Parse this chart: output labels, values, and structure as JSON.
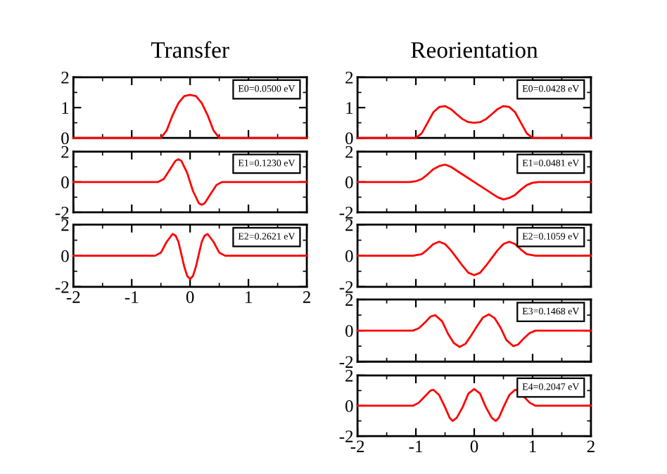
{
  "chart_data": [
    {
      "type": "line",
      "title": "Transfer",
      "x": [
        -2,
        -1,
        -0.5,
        -0.4,
        -0.3,
        -0.2,
        -0.1,
        0,
        0.1,
        0.2,
        0.3,
        0.4,
        0.5,
        1,
        2
      ],
      "series": [
        {
          "color": "#ff0000",
          "values": [
            0,
            0,
            0,
            0.25,
            0.75,
            1.15,
            1.38,
            1.42,
            1.38,
            1.15,
            0.75,
            0.25,
            0,
            0,
            0
          ]
        }
      ],
      "xlim": [
        -2,
        2
      ],
      "ylim": [
        0,
        2
      ],
      "xticks": [
        -2,
        -1,
        0,
        1,
        2
      ],
      "yticks": [
        0,
        1,
        2
      ],
      "tick_labels": "y",
      "annotations": [
        "E0=0.0500 eV"
      ]
    },
    {
      "type": "line",
      "x": [
        -2,
        -1,
        -0.55,
        -0.45,
        -0.35,
        -0.25,
        -0.2,
        -0.15,
        -0.05,
        0,
        0.05,
        0.15,
        0.2,
        0.25,
        0.35,
        0.45,
        0.55,
        1,
        2
      ],
      "series": [
        {
          "color": "#ff0000",
          "values": [
            0,
            0,
            0,
            0.2,
            0.8,
            1.4,
            1.5,
            1.4,
            0.6,
            0,
            -0.6,
            -1.4,
            -1.5,
            -1.4,
            -0.8,
            -0.2,
            0,
            0,
            0
          ]
        }
      ],
      "xlim": [
        -2,
        2
      ],
      "ylim": [
        -2,
        2
      ],
      "xticks": [
        -2,
        -1,
        0,
        1,
        2
      ],
      "yticks": [
        -2,
        0,
        2
      ],
      "tick_labels": "y",
      "annotations": [
        "E1=0.1230 eV"
      ]
    },
    {
      "type": "line",
      "x": [
        -2,
        -1,
        -0.6,
        -0.5,
        -0.4,
        -0.3,
        -0.25,
        -0.2,
        -0.15,
        -0.1,
        -0.05,
        0,
        0.05,
        0.1,
        0.15,
        0.2,
        0.25,
        0.3,
        0.4,
        0.5,
        0.6,
        1,
        2
      ],
      "series": [
        {
          "color": "#ff0000",
          "values": [
            0,
            0,
            0,
            0.2,
            0.9,
            1.4,
            1.3,
            0.9,
            0.1,
            -0.7,
            -1.3,
            -1.5,
            -1.3,
            -0.7,
            0.1,
            0.9,
            1.3,
            1.4,
            0.9,
            0.2,
            0,
            0,
            0
          ]
        }
      ],
      "xlim": [
        -2,
        2
      ],
      "ylim": [
        -2,
        2
      ],
      "xticks": [
        -2,
        -1,
        0,
        1,
        2
      ],
      "yticks": [
        -2,
        0,
        2
      ],
      "annotations": [
        "E2=0.2621 eV"
      ]
    },
    {
      "type": "line",
      "title": "Reorientation",
      "x": [
        -2,
        -1.5,
        -1,
        -0.9,
        -0.8,
        -0.7,
        -0.6,
        -0.5,
        -0.4,
        -0.3,
        -0.2,
        -0.1,
        0,
        0.1,
        0.2,
        0.3,
        0.4,
        0.5,
        0.6,
        0.7,
        0.8,
        0.9,
        1,
        1.5,
        2
      ],
      "series": [
        {
          "color": "#ff0000",
          "values": [
            0,
            0,
            0,
            0.15,
            0.5,
            0.85,
            1.02,
            1.05,
            0.95,
            0.78,
            0.62,
            0.52,
            0.5,
            0.52,
            0.62,
            0.78,
            0.95,
            1.05,
            1.02,
            0.85,
            0.5,
            0.15,
            0,
            0,
            0
          ]
        }
      ],
      "xlim": [
        -2,
        2
      ],
      "ylim": [
        0,
        2
      ],
      "xticks": [
        -2,
        -1,
        0,
        1,
        2
      ],
      "yticks": [
        0,
        1,
        2
      ],
      "tick_labels": "y",
      "annotations": [
        "E0=0.0428 eV"
      ]
    },
    {
      "type": "line",
      "x": [
        -2,
        -1.5,
        -1.1,
        -1,
        -0.9,
        -0.8,
        -0.7,
        -0.6,
        -0.5,
        -0.4,
        -0.2,
        0,
        0.2,
        0.4,
        0.5,
        0.6,
        0.7,
        0.8,
        0.9,
        1,
        1.1,
        1.5,
        2
      ],
      "series": [
        {
          "color": "#ff0000",
          "values": [
            0,
            0,
            0,
            0.05,
            0.2,
            0.5,
            0.85,
            1.05,
            1.15,
            1.0,
            0.5,
            0,
            -0.5,
            -1.0,
            -1.15,
            -1.05,
            -0.85,
            -0.5,
            -0.2,
            -0.05,
            0,
            0,
            0
          ]
        }
      ],
      "xlim": [
        -2,
        2
      ],
      "ylim": [
        -2,
        2
      ],
      "xticks": [
        -2,
        -1,
        0,
        1,
        2
      ],
      "yticks": [
        -2,
        0,
        2
      ],
      "tick_labels": "y",
      "annotations": [
        "E1=0.0481 eV"
      ]
    },
    {
      "type": "line",
      "x": [
        -2,
        -1.5,
        -1.05,
        -0.9,
        -0.8,
        -0.7,
        -0.6,
        -0.5,
        -0.4,
        -0.3,
        -0.2,
        -0.1,
        0,
        0.1,
        0.2,
        0.3,
        0.4,
        0.5,
        0.6,
        0.7,
        0.8,
        0.9,
        1.05,
        1.5,
        2
      ],
      "series": [
        {
          "color": "#ff0000",
          "values": [
            0,
            0,
            0,
            0.1,
            0.4,
            0.75,
            0.9,
            0.75,
            0.35,
            -0.15,
            -0.65,
            -1.1,
            -1.25,
            -1.1,
            -0.65,
            -0.15,
            0.35,
            0.75,
            0.9,
            0.75,
            0.4,
            0.1,
            0,
            0,
            0
          ]
        }
      ],
      "xlim": [
        -2,
        2
      ],
      "ylim": [
        -2,
        2
      ],
      "xticks": [
        -2,
        -1,
        0,
        1,
        2
      ],
      "yticks": [
        -2,
        0,
        2
      ],
      "tick_labels": "y",
      "annotations": [
        "E2=0.1059 eV"
      ]
    },
    {
      "type": "line",
      "x": [
        -2,
        -1.5,
        -1.05,
        -0.95,
        -0.85,
        -0.75,
        -0.67,
        -0.55,
        -0.45,
        -0.35,
        -0.25,
        -0.15,
        -0.05,
        0,
        0.05,
        0.15,
        0.25,
        0.35,
        0.45,
        0.55,
        0.67,
        0.75,
        0.85,
        0.95,
        1.05,
        1.5,
        2
      ],
      "series": [
        {
          "color": "#ff0000",
          "values": [
            0,
            0,
            0,
            0.15,
            0.5,
            0.9,
            1.0,
            0.6,
            -0.2,
            -0.8,
            -1.05,
            -0.85,
            -0.3,
            0,
            0.3,
            0.85,
            1.05,
            0.8,
            0.2,
            -0.6,
            -1.0,
            -0.9,
            -0.5,
            -0.15,
            0,
            0,
            0
          ]
        }
      ],
      "xlim": [
        -2,
        2
      ],
      "ylim": [
        -2,
        2
      ],
      "xticks": [
        -2,
        -1,
        0,
        1,
        2
      ],
      "yticks": [
        -2,
        0,
        2
      ],
      "tick_labels": "y",
      "annotations": [
        "E3=0.1468 eV"
      ]
    },
    {
      "type": "line",
      "x": [
        -2,
        -1.5,
        -1.05,
        -0.95,
        -0.85,
        -0.75,
        -0.7,
        -0.6,
        -0.5,
        -0.42,
        -0.37,
        -0.3,
        -0.2,
        -0.1,
        0,
        0.1,
        0.2,
        0.3,
        0.37,
        0.42,
        0.5,
        0.6,
        0.7,
        0.75,
        0.85,
        0.95,
        1.05,
        1.5,
        2
      ],
      "series": [
        {
          "color": "#ff0000",
          "values": [
            0,
            0,
            0,
            0.2,
            0.6,
            1.0,
            1.05,
            0.7,
            -0.1,
            -0.8,
            -1.0,
            -0.8,
            -0.1,
            0.8,
            1.1,
            0.8,
            -0.1,
            -0.8,
            -1.0,
            -0.8,
            -0.1,
            0.7,
            1.05,
            1.0,
            0.6,
            0.2,
            0,
            0,
            0
          ]
        }
      ],
      "xlim": [
        -2,
        2
      ],
      "ylim": [
        -2,
        2
      ],
      "xticks": [
        -2,
        -1,
        0,
        1,
        2
      ],
      "yticks": [
        -2,
        0,
        2
      ],
      "annotations": [
        "E4=0.2047 eV"
      ]
    }
  ]
}
